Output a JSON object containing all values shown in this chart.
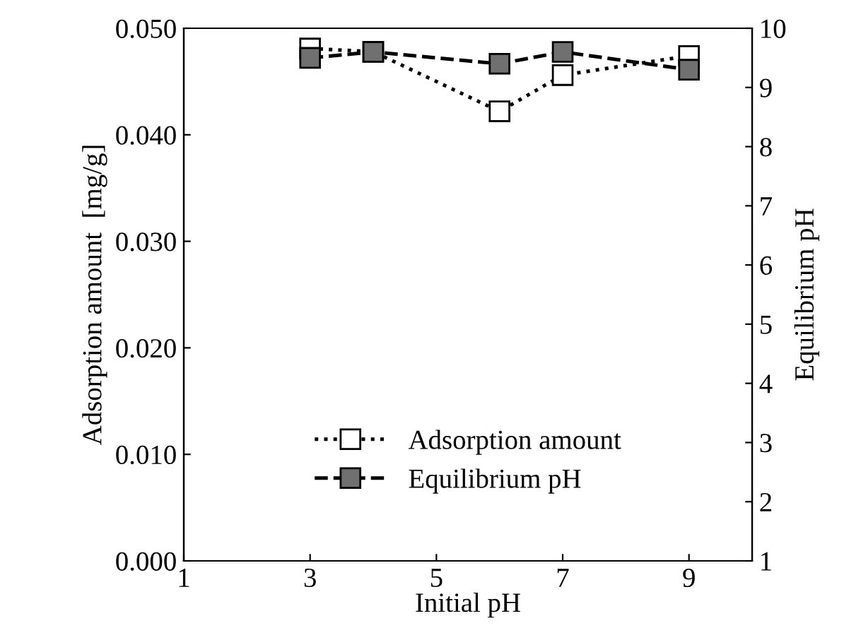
{
  "chart_data": {
    "type": "line",
    "xlabel": "Initial pH",
    "ylabel": "Adsorption amount  [mg/g]",
    "y2label": "Equilibrium pH",
    "x": [
      3,
      4,
      6,
      7,
      9
    ],
    "series": [
      {
        "name": "Adsorption amount",
        "color": "#ffffff",
        "values": [
          0.0481,
          0.0478,
          0.0422,
          0.0456,
          0.0474
        ],
        "line_style": "dotted",
        "marker": "square"
      },
      {
        "name": "Equilibrium pH",
        "color": "#707070",
        "values": [
          9.5,
          9.6,
          9.4,
          9.6,
          9.3
        ],
        "axis": "y2",
        "line_style": "dashed",
        "marker": "square"
      }
    ],
    "xlim": [
      1,
      10
    ],
    "xticks": [
      1,
      3,
      5,
      7,
      9
    ],
    "ylim": [
      0,
      0.05
    ],
    "yticks": [
      {
        "value": 0,
        "label": "0.000"
      },
      {
        "value": 0.01,
        "label": "0.010"
      },
      {
        "value": 0.02,
        "label": "0.020"
      },
      {
        "value": 0.03,
        "label": "0.030"
      },
      {
        "value": 0.04,
        "label": "0.040"
      },
      {
        "value": 0.05,
        "label": "0.050"
      }
    ],
    "y2lim": [
      1,
      10
    ],
    "y2ticks": [
      1,
      2,
      3,
      4,
      5,
      6,
      7,
      8,
      9,
      10
    ],
    "legend": "bottom",
    "grid": false
  }
}
